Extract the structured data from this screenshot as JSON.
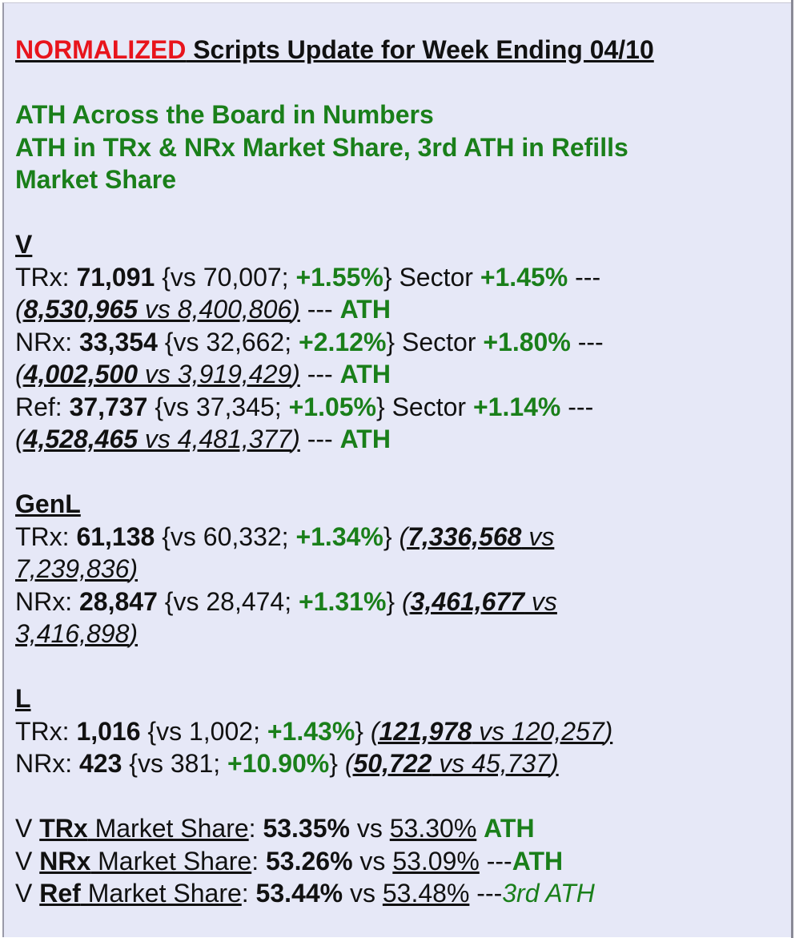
{
  "title": {
    "red": "NORMALIZED",
    "rest": " Scripts Update for Week Ending 04/10"
  },
  "headlines": [
    "ATH Across the Board in Numbers",
    "ATH in TRx & NRx Market Share, 3rd ATH in Refills",
    "Market Share"
  ],
  "sections": {
    "v": {
      "heading": "V",
      "trx": {
        "label": "TRx: ",
        "value": "71,091",
        "vs_open": " {vs 70,007; ",
        "pct": "+1.55%",
        "sector_label": "} Sector ",
        "sector_pct": "+1.45%",
        "dash": " ---",
        "paren_open": "(",
        "cum_bold": "8,530,965",
        "cum_rest": " vs 8,400,806",
        "paren_close": ")",
        "sep": " --- ",
        "ath": "ATH"
      },
      "nrx": {
        "label": "NRx: ",
        "value": "33,354",
        "vs_open": " {vs 32,662; ",
        "pct": "+2.12%",
        "sector_label": "} Sector ",
        "sector_pct": "+1.80%",
        "dash": " ---",
        "paren_open": "(",
        "cum_bold": "4,002,500",
        "cum_rest": " vs 3,919,429",
        "paren_close": ")",
        "sep": " --- ",
        "ath": "ATH"
      },
      "ref": {
        "label": "Ref: ",
        "value": "37,737",
        "vs_open": " {vs 37,345; ",
        "pct": "+1.05%",
        "sector_label": "} Sector ",
        "sector_pct": "+1.14%",
        "dash": " ---",
        "paren_open": "(",
        "cum_bold": "4,528,465",
        "cum_rest": " vs 4,481,377",
        "paren_close": ")",
        "sep": " --- ",
        "ath": "ATH"
      }
    },
    "genl": {
      "heading": "GenL",
      "trx": {
        "label": "TRx: ",
        "value": "61,138",
        "vs_open": " {vs 60,332; ",
        "pct": "+1.34%",
        "close": "} ",
        "paren_open": "(",
        "cum_bold": "7,336,568",
        "cum_rest1": " vs",
        "cum_rest2": "7,239,836",
        "paren_close": ")"
      },
      "nrx": {
        "label": "NRx: ",
        "value": "28,847",
        "vs_open": " {vs 28,474; ",
        "pct": "+1.31%",
        "close": "} ",
        "paren_open": "(",
        "cum_bold": "3,461,677",
        "cum_rest1": " vs",
        "cum_rest2": "3,416,898",
        "paren_close": ")"
      }
    },
    "l": {
      "heading": "L",
      "trx": {
        "label": "TRx: ",
        "value": "1,016",
        "vs_open": " {vs 1,002; ",
        "pct": "+1.43%",
        "close": "} ",
        "paren_open": "(",
        "cum_bold": "121,978",
        "cum_rest": " vs 120,257",
        "paren_close": ")"
      },
      "nrx": {
        "label": "NRx: ",
        "value": "423",
        "vs_open": " {vs 381; ",
        "pct": "+10.90%",
        "close": "} ",
        "paren_open": "(",
        "cum_bold": "50,722",
        "cum_rest": " vs 45,737",
        "paren_close": ")"
      }
    }
  },
  "market_share": [
    {
      "prefix": "V ",
      "metric": "TRx",
      "suffix": " Market Share",
      "colon": ": ",
      "value": "53.35%",
      "vs": " vs ",
      "prior": "53.30%",
      "tail": " ",
      "ath": "ATH"
    },
    {
      "prefix": "V ",
      "metric": "NRx",
      "suffix": " Market Share",
      "colon": ": ",
      "value": "53.26%",
      "vs": " vs ",
      "prior": "53.09%",
      "tail": " ---",
      "ath": "ATH"
    },
    {
      "prefix": "V ",
      "metric": "Ref",
      "suffix": " Market Share",
      "colon": ": ",
      "value": "53.44%",
      "vs": " vs ",
      "prior": "53.48%",
      "tail": " ---",
      "ath": "3rd ATH"
    }
  ],
  "colors": {
    "red": "#e8141c",
    "green": "#1a7f1a",
    "panel": "#e6e8f7"
  }
}
